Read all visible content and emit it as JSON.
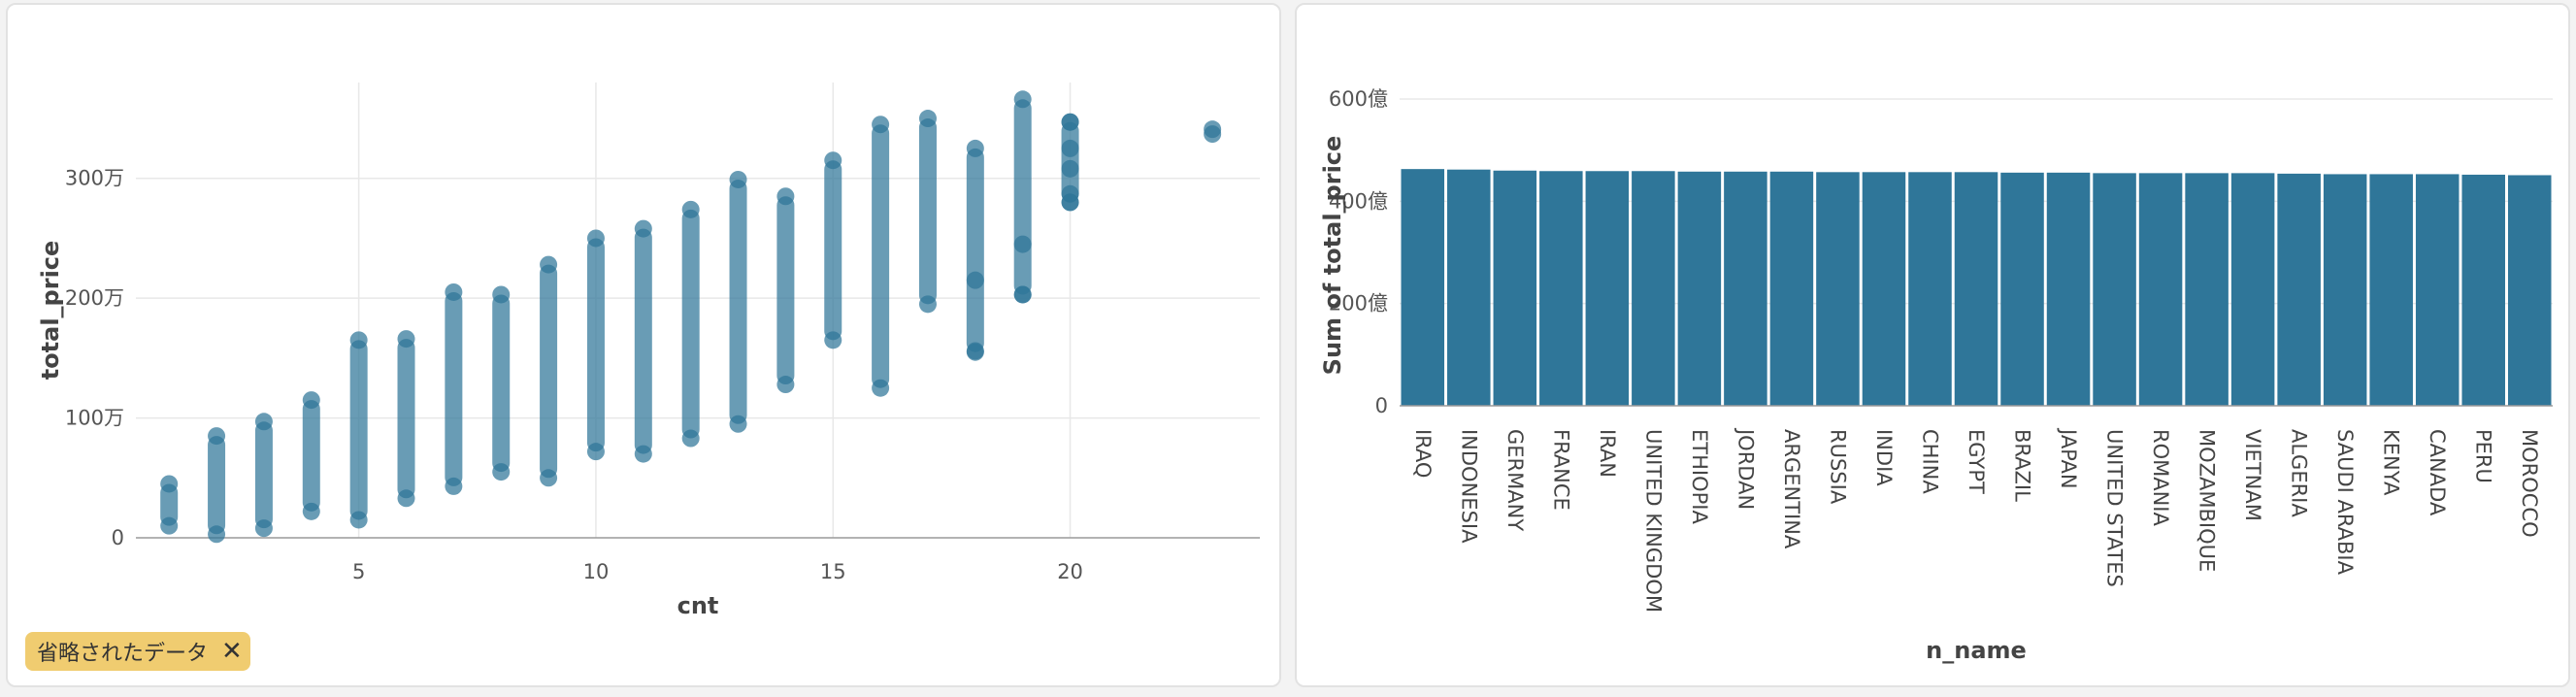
{
  "colors": {
    "mark": "#2f7699",
    "grid": "#e8e8e8",
    "axis": "#9a9a9a"
  },
  "chart_data": [
    {
      "type": "scatter",
      "xlabel": "cnt",
      "ylabel": "total_price",
      "xlim": [
        0.3,
        24
      ],
      "ylim": [
        0,
        3800000
      ],
      "xticks": [
        5,
        10,
        15,
        20
      ],
      "xtick_labels": [
        "5",
        "10",
        "15",
        "20"
      ],
      "yticks": [
        0,
        1000000,
        2000000,
        3000000
      ],
      "ytick_labels": [
        "0",
        "100万",
        "200万",
        "300万"
      ],
      "grid": true,
      "series": [
        {
          "x": 1,
          "range": [
            100000,
            450000
          ]
        },
        {
          "x": 2,
          "range": [
            30000,
            850000
          ]
        },
        {
          "x": 3,
          "range": [
            80000,
            970000
          ]
        },
        {
          "x": 4,
          "range": [
            220000,
            1150000
          ]
        },
        {
          "x": 5,
          "range": [
            150000,
            1650000
          ]
        },
        {
          "x": 6,
          "range": [
            330000,
            1660000
          ]
        },
        {
          "x": 7,
          "range": [
            430000,
            2050000
          ]
        },
        {
          "x": 8,
          "range": [
            550000,
            2030000
          ]
        },
        {
          "x": 9,
          "range": [
            500000,
            2280000
          ]
        },
        {
          "x": 10,
          "range": [
            720000,
            2500000
          ]
        },
        {
          "x": 11,
          "range": [
            700000,
            2580000
          ]
        },
        {
          "x": 12,
          "range": [
            830000,
            2740000
          ]
        },
        {
          "x": 13,
          "range": [
            950000,
            2990000
          ]
        },
        {
          "x": 14,
          "range": [
            1280000,
            2850000
          ]
        },
        {
          "x": 15,
          "range": [
            1650000,
            3150000
          ]
        },
        {
          "x": 16,
          "range": [
            1250000,
            3450000
          ]
        },
        {
          "x": 17,
          "range": [
            1950000,
            3500000
          ]
        },
        {
          "x": 18,
          "range": [
            1550000,
            3250000
          ]
        },
        {
          "x": 19,
          "range": [
            2030000,
            3660000
          ]
        },
        {
          "x": 20,
          "range": [
            2800000,
            3470000
          ]
        }
      ],
      "points": [
        {
          "x": 18,
          "y": 1560000
        },
        {
          "x": 18,
          "y": 2150000
        },
        {
          "x": 19,
          "y": 2030000
        },
        {
          "x": 19,
          "y": 2450000
        },
        {
          "x": 20,
          "y": 2800000
        },
        {
          "x": 20,
          "y": 2870000
        },
        {
          "x": 20,
          "y": 3080000
        },
        {
          "x": 20,
          "y": 3250000
        },
        {
          "x": 20,
          "y": 3470000
        },
        {
          "x": 23,
          "y": 3370000
        },
        {
          "x": 23,
          "y": 3410000
        }
      ]
    },
    {
      "type": "bar",
      "xlabel": "n_name",
      "ylabel": "Sum of total_price",
      "ylim": [
        0,
        60000000000
      ],
      "yticks": [
        0,
        20000000000,
        40000000000,
        60000000000
      ],
      "ytick_labels": [
        "0",
        "200億",
        "400億",
        "600億"
      ],
      "grid": true,
      "categories": [
        "IRAQ",
        "INDONESIA",
        "GERMANY",
        "FRANCE",
        "IRAN",
        "UNITED KINGDOM",
        "ETHIOPIA",
        "JORDAN",
        "ARGENTINA",
        "RUSSIA",
        "INDIA",
        "CHINA",
        "EGYPT",
        "BRAZIL",
        "JAPAN",
        "UNITED STATES",
        "ROMANIA",
        "MOZAMBIQUE",
        "VIETNAM",
        "ALGERIA",
        "SAUDI ARABIA",
        "KENYA",
        "CANADA",
        "PERU",
        "MOROCCO"
      ],
      "values": [
        46300000000,
        46200000000,
        46000000000,
        45900000000,
        45900000000,
        45900000000,
        45800000000,
        45800000000,
        45800000000,
        45700000000,
        45700000000,
        45700000000,
        45700000000,
        45600000000,
        45600000000,
        45500000000,
        45500000000,
        45500000000,
        45500000000,
        45400000000,
        45300000000,
        45300000000,
        45300000000,
        45200000000,
        45100000000
      ]
    }
  ],
  "badge": {
    "label": "省略されたデータ",
    "close_label": "✕"
  }
}
